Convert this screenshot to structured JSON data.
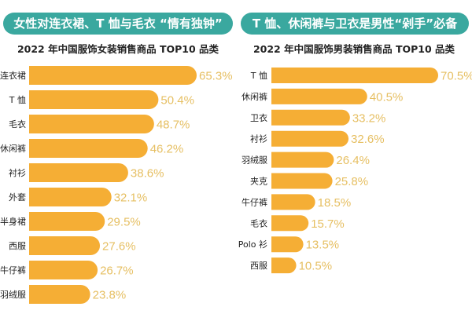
{
  "colors": {
    "title_bg": "#3aa89f",
    "bar": "#f5ae35",
    "value_label": "#e6bf62"
  },
  "chart_data": [
    {
      "type": "bar",
      "orientation": "horizontal",
      "headline": "女性对连衣裙、T 恤与毛衣 “情有独钟”",
      "title": "2022 年中国服饰女装销售商品 TOP10 品类",
      "categories": [
        "连衣裙",
        "T 恤",
        "毛衣",
        "休闲裤",
        "衬衫",
        "外套",
        "半身裙",
        "西服",
        "牛仔裤",
        "羽绒服"
      ],
      "values": [
        65.3,
        50.4,
        48.7,
        46.2,
        38.6,
        32.1,
        29.5,
        27.6,
        26.7,
        23.8
      ],
      "value_labels": [
        "65.3%",
        "50.4%",
        "48.7%",
        "46.2%",
        "38.6%",
        "32.1%",
        "29.5%",
        "27.6%",
        "26.7%",
        "23.8%"
      ],
      "unit": "%"
    },
    {
      "type": "bar",
      "orientation": "horizontal",
      "headline": "T 恤、休闲裤与卫衣是男性“剁手”必备",
      "title": "2022 年中国服饰男装销售商品 TOP10 品类",
      "categories": [
        "T 恤",
        "休闲裤",
        "卫衣",
        "衬衫",
        "羽绒服",
        "夹克",
        "牛仔裤",
        "毛衣",
        "Polo 衫",
        "西服"
      ],
      "values": [
        70.5,
        40.5,
        33.2,
        32.6,
        26.4,
        25.8,
        18.5,
        15.7,
        13.5,
        10.5
      ],
      "value_labels": [
        "70.5%",
        "40.5%",
        "33.2%",
        "32.6%",
        "26.4%",
        "25.8%",
        "18.5%",
        "15.7%",
        "13.5%",
        "10.5%"
      ],
      "unit": "%"
    }
  ]
}
